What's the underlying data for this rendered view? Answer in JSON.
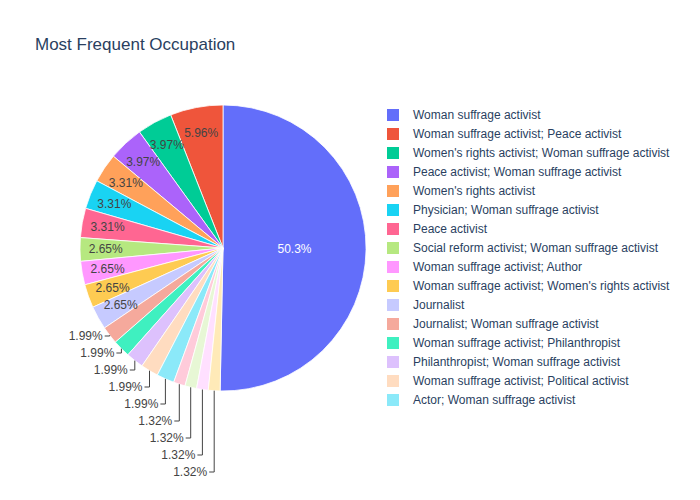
{
  "chart_data": {
    "type": "pie",
    "title": "Most Frequent Occupation",
    "categories": [
      "Woman suffrage activist",
      "Woman suffrage activist; Peace activist",
      "Women's rights activist; Woman suffrage activist",
      "Peace activist; Woman suffrage activist",
      "Women's rights activist",
      "Physician; Woman suffrage activist",
      "Peace activist",
      "Social reform activist; Woman suffrage activist",
      "Woman suffrage activist; Author",
      "Woman suffrage activist; Women's rights activist",
      "Journalist",
      "Journalist; Woman suffrage activist",
      "Woman suffrage activist; Philanthropist",
      "Philanthropist; Woman suffrage activist",
      "Woman suffrage activist; Political activist",
      "Actor; Woman suffrage activist",
      null,
      null,
      null,
      null
    ],
    "values": [
      50.3,
      5.96,
      3.97,
      3.97,
      3.31,
      3.31,
      3.31,
      2.65,
      2.65,
      2.65,
      2.65,
      1.99,
      1.99,
      1.99,
      1.99,
      1.99,
      1.32,
      1.32,
      1.32,
      1.32
    ],
    "value_labels": [
      "50.3%",
      "5.96%",
      "3.97%",
      "3.97%",
      "3.31%",
      "3.31%",
      "3.31%",
      "2.65%",
      "2.65%",
      "2.65%",
      "2.65%",
      "1.99%",
      "1.99%",
      "1.99%",
      "1.99%",
      "1.99%",
      "1.32%",
      "1.32%",
      "1.32%",
      "1.32%"
    ],
    "colors": [
      "#636efa",
      "#ef553b",
      "#00cc96",
      "#ab63fa",
      "#ffa15a",
      "#19d3f3",
      "#ff6692",
      "#b6e880",
      "#ff97ff",
      "#fecb52",
      "#c6caff",
      "#f5a99c",
      "#3ff0c0",
      "#ddc1fd",
      "#ffdcc0",
      "#8be9f9",
      "#ffcbda",
      "#e7f7d5",
      "#ffe0ff",
      "#ffeab8"
    ],
    "data_labels": true,
    "legend": "right"
  }
}
